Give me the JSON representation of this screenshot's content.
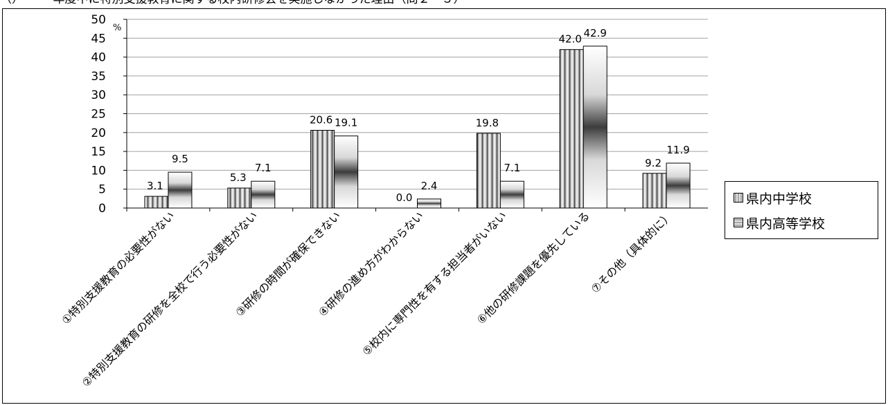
{
  "caption": "（）　　　年度中に特別支援教育に関する校内研修会を実施しなかった理由（問２－３）",
  "colors": {
    "series1": "#c8c8c8",
    "series2": "#b4b4b4",
    "grid": "#a0a0a0",
    "axis": "#000000"
  },
  "chart_data": {
    "type": "bar",
    "unit_label": "%",
    "ylim": [
      0,
      50
    ],
    "yticks": [
      0,
      5,
      10,
      15,
      20,
      25,
      30,
      35,
      40,
      45,
      50
    ],
    "grid": true,
    "legend_position": "right",
    "categories": [
      "①特別支援教育の必要性がない",
      "②特別支援教育の研修を全校で行う必要性がない",
      "③研修の時間が確保できない",
      "④研修の進め方がわからない",
      "⑤校内に専門性を有する担当者がいない",
      "⑥他の研修課題を優先している",
      "⑦その他（具体的に）"
    ],
    "series": [
      {
        "name": "県内中学校",
        "values": [
          3.1,
          5.3,
          20.6,
          0.0,
          19.8,
          42.0,
          9.2
        ],
        "labels": [
          "3.1",
          "5.3",
          "20.6",
          "0.0",
          "19.8",
          "42.0",
          "9.2"
        ]
      },
      {
        "name": "県内高等学校",
        "values": [
          9.5,
          7.1,
          19.1,
          2.4,
          7.1,
          42.9,
          11.9
        ],
        "labels": [
          "9.5",
          "7.1",
          "19.1",
          "2.4",
          "7.1",
          "42.9",
          "11.9"
        ]
      }
    ]
  }
}
